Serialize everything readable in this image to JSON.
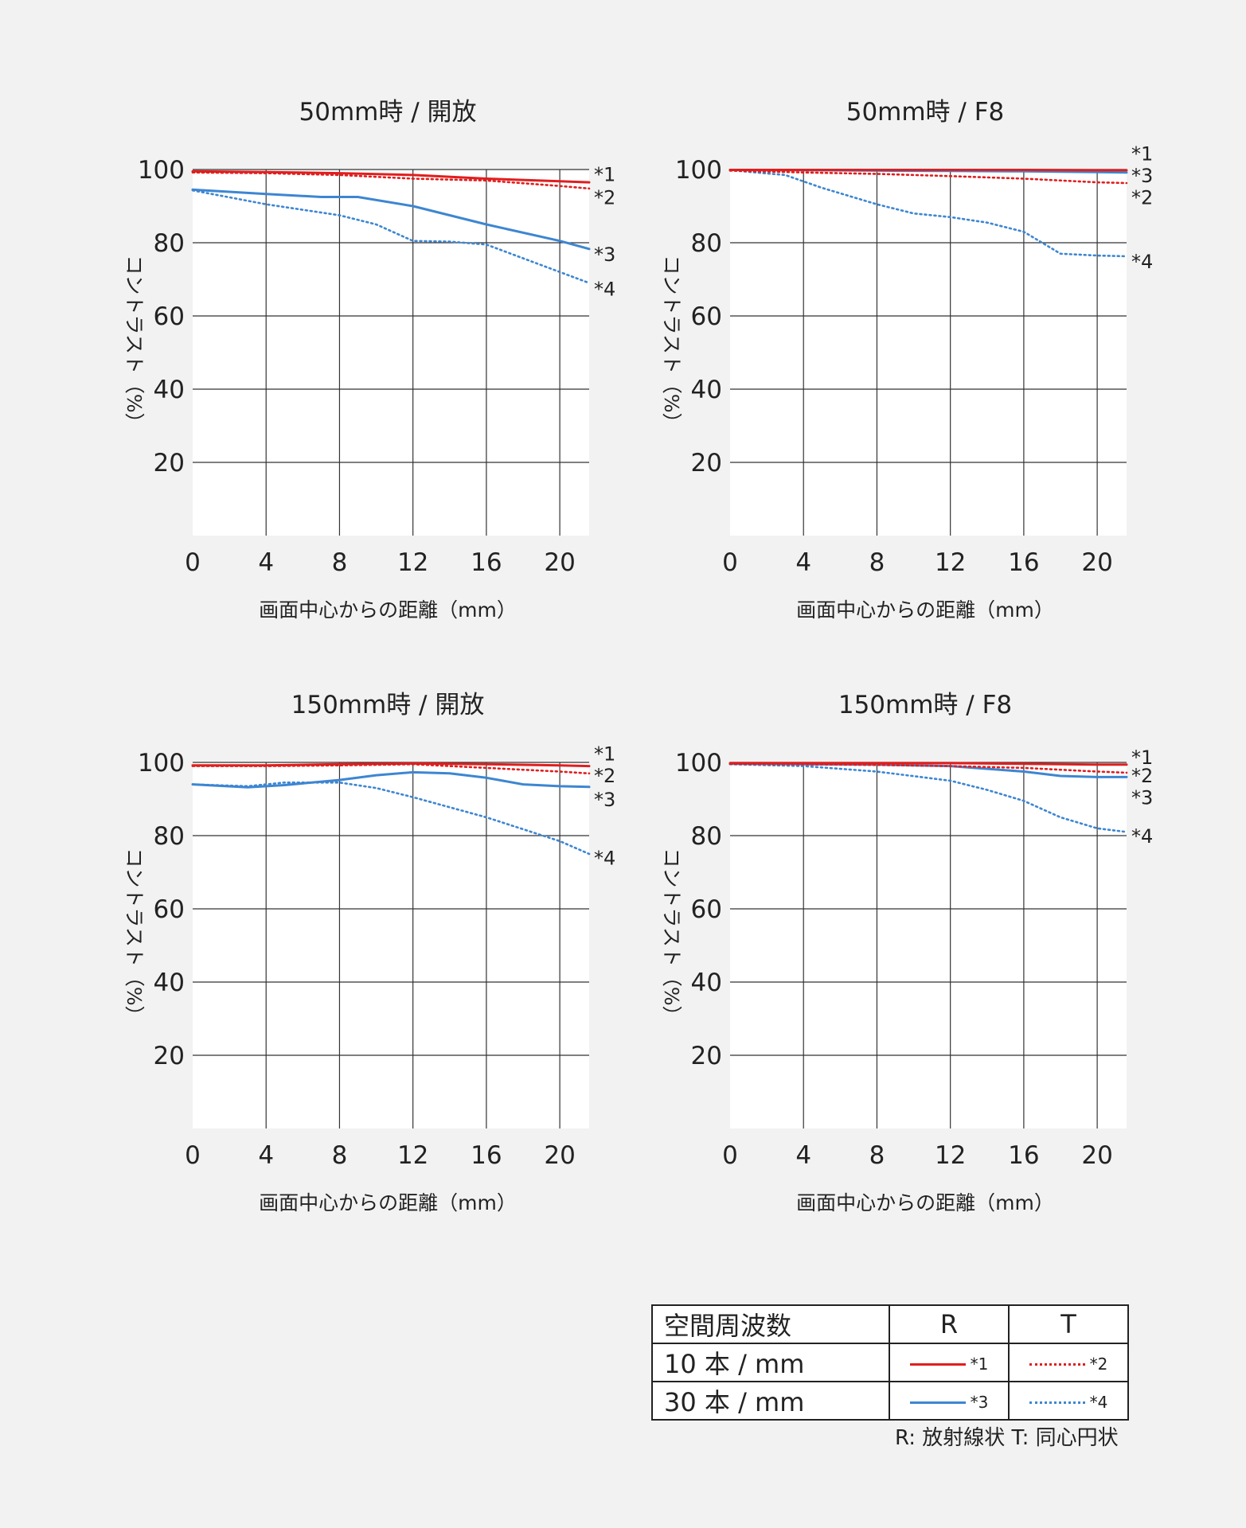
{
  "colors": {
    "red": "#e01e1e",
    "blue": "#3d86d2"
  },
  "x_ticks": [
    0,
    4,
    8,
    12,
    16,
    20
  ],
  "y_ticks": [
    20,
    40,
    60,
    80,
    100
  ],
  "chart_data": [
    {
      "type": "line",
      "title": "50mm時 / 開放",
      "xlabel": "画面中心からの距離（mm）",
      "ylabel": "コントラスト（%）",
      "xlim": [
        0,
        21.6
      ],
      "ylim": [
        0,
        100
      ],
      "series": [
        {
          "name": "*1",
          "color": "#e01e1e",
          "style": "solid",
          "points": [
            [
              0,
              99.5
            ],
            [
              4,
              99.3
            ],
            [
              8,
              99
            ],
            [
              12,
              98.5
            ],
            [
              16,
              97.5
            ],
            [
              20,
              96.8
            ],
            [
              21.6,
              96.5
            ]
          ]
        },
        {
          "name": "*2",
          "color": "#e01e1e",
          "style": "dotted",
          "points": [
            [
              0,
              99.2
            ],
            [
              4,
              99
            ],
            [
              8,
              98.5
            ],
            [
              12,
              97.5
            ],
            [
              16,
              97
            ],
            [
              20,
              95.5
            ],
            [
              21.6,
              94.8
            ]
          ]
        },
        {
          "name": "*3",
          "color": "#3d86d2",
          "style": "solid",
          "points": [
            [
              0,
              94.5
            ],
            [
              4,
              93.3
            ],
            [
              7,
              92.5
            ],
            [
              9,
              92.5
            ],
            [
              12,
              90
            ],
            [
              16,
              85
            ],
            [
              20,
              80.5
            ],
            [
              21.6,
              78.3
            ]
          ]
        },
        {
          "name": "*4",
          "color": "#3d86d2",
          "style": "dotted",
          "points": [
            [
              0,
              94.3
            ],
            [
              4,
              90.5
            ],
            [
              8,
              87.5
            ],
            [
              10,
              85
            ],
            [
              12,
              80.5
            ],
            [
              14,
              80.3
            ],
            [
              16,
              79.5
            ],
            [
              20,
              72
            ],
            [
              21.6,
              69
            ]
          ]
        }
      ],
      "labels": [
        {
          "text": "*1",
          "y": 98.8
        },
        {
          "text": "*2",
          "y": 92.5
        },
        {
          "text": "*3",
          "y": 77
        },
        {
          "text": "*4",
          "y": 67.5
        }
      ]
    },
    {
      "type": "line",
      "title": "50mm時 / F8",
      "xlabel": "画面中心からの距離（mm）",
      "ylabel": "コントラスト（%）",
      "xlim": [
        0,
        21.6
      ],
      "ylim": [
        0,
        100
      ],
      "series": [
        {
          "name": "*1",
          "color": "#e01e1e",
          "style": "solid",
          "points": [
            [
              0,
              99.9
            ],
            [
              4,
              99.9
            ],
            [
              8,
              99.9
            ],
            [
              12,
              99.9
            ],
            [
              16,
              99.9
            ],
            [
              20,
              99.8
            ],
            [
              21.6,
              99.8
            ]
          ]
        },
        {
          "name": "*2",
          "color": "#e01e1e",
          "style": "dotted",
          "points": [
            [
              0,
              99.7
            ],
            [
              4,
              99.2
            ],
            [
              8,
              98.8
            ],
            [
              12,
              98.2
            ],
            [
              16,
              97.5
            ],
            [
              20,
              96.5
            ],
            [
              21.6,
              96.3
            ]
          ]
        },
        {
          "name": "*3",
          "color": "#3d86d2",
          "style": "solid",
          "points": [
            [
              0,
              99.9
            ],
            [
              4,
              99.8
            ],
            [
              8,
              99.7
            ],
            [
              12,
              99.6
            ],
            [
              16,
              99.5
            ],
            [
              20,
              99.3
            ],
            [
              21.6,
              99.2
            ]
          ]
        },
        {
          "name": "*4",
          "color": "#3d86d2",
          "style": "dotted",
          "points": [
            [
              0,
              99.8
            ],
            [
              3,
              98.5
            ],
            [
              5,
              95
            ],
            [
              8,
              90.5
            ],
            [
              10,
              88
            ],
            [
              12,
              87
            ],
            [
              14,
              85.5
            ],
            [
              16,
              83
            ],
            [
              18,
              77
            ],
            [
              20,
              76.5
            ],
            [
              21.6,
              76.3
            ]
          ]
        }
      ],
      "labels": [
        {
          "text": "*1",
          "y": 104.5
        },
        {
          "text": "*3",
          "y": 98.5
        },
        {
          "text": "*2",
          "y": 92.5
        },
        {
          "text": "*4",
          "y": 75
        }
      ]
    },
    {
      "type": "line",
      "title": "150mm時 / 開放",
      "xlabel": "画面中心からの距離（mm）",
      "ylabel": "コントラスト（%）",
      "xlim": [
        0,
        21.6
      ],
      "ylim": [
        0,
        100
      ],
      "series": [
        {
          "name": "*1",
          "color": "#e01e1e",
          "style": "solid",
          "points": [
            [
              0,
              99.2
            ],
            [
              4,
              99.2
            ],
            [
              8,
              99.5
            ],
            [
              12,
              99.7
            ],
            [
              16,
              99.5
            ],
            [
              20,
              99.2
            ],
            [
              21.6,
              99
            ]
          ]
        },
        {
          "name": "*2",
          "color": "#e01e1e",
          "style": "dotted",
          "points": [
            [
              0,
              99
            ],
            [
              4,
              99
            ],
            [
              8,
              99.2
            ],
            [
              12,
              99.5
            ],
            [
              16,
              98.5
            ],
            [
              20,
              97.5
            ],
            [
              21.6,
              97
            ]
          ]
        },
        {
          "name": "*3",
          "color": "#3d86d2",
          "style": "solid",
          "points": [
            [
              0,
              94
            ],
            [
              3,
              93.2
            ],
            [
              5,
              93.8
            ],
            [
              8,
              95.2
            ],
            [
              10,
              96.5
            ],
            [
              12,
              97.3
            ],
            [
              14,
              97
            ],
            [
              16,
              95.8
            ],
            [
              18,
              94
            ],
            [
              20,
              93.5
            ],
            [
              21.6,
              93.3
            ]
          ]
        },
        {
          "name": "*4",
          "color": "#3d86d2",
          "style": "dotted",
          "points": [
            [
              0,
              94
            ],
            [
              3,
              93.5
            ],
            [
              5,
              94.5
            ],
            [
              8,
              94.5
            ],
            [
              10,
              93
            ],
            [
              12,
              90.5
            ],
            [
              16,
              85
            ],
            [
              20,
              78.5
            ],
            [
              21.6,
              75
            ]
          ]
        }
      ],
      "labels": [
        {
          "text": "*1",
          "y": 102.5
        },
        {
          "text": "*2",
          "y": 96.5
        },
        {
          "text": "*3",
          "y": 90
        },
        {
          "text": "*4",
          "y": 74
        }
      ]
    },
    {
      "type": "line",
      "title": "150mm時 / F8",
      "xlabel": "画面中心からの距離（mm）",
      "ylabel": "コントラスト（%）",
      "xlim": [
        0,
        21.6
      ],
      "ylim": [
        0,
        100
      ],
      "series": [
        {
          "name": "*1",
          "color": "#e01e1e",
          "style": "solid",
          "points": [
            [
              0,
              99.8
            ],
            [
              4,
              99.8
            ],
            [
              8,
              99.8
            ],
            [
              12,
              99.8
            ],
            [
              16,
              99.6
            ],
            [
              20,
              99.4
            ],
            [
              21.6,
              99.4
            ]
          ]
        },
        {
          "name": "*2",
          "color": "#e01e1e",
          "style": "dotted",
          "points": [
            [
              0,
              99.6
            ],
            [
              4,
              99.5
            ],
            [
              8,
              99.3
            ],
            [
              12,
              99
            ],
            [
              16,
              98.5
            ],
            [
              20,
              97.5
            ],
            [
              21.6,
              97.2
            ]
          ]
        },
        {
          "name": "*3",
          "color": "#3d86d2",
          "style": "solid",
          "points": [
            [
              0,
              99.6
            ],
            [
              4,
              99.5
            ],
            [
              8,
              99.4
            ],
            [
              12,
              99
            ],
            [
              16,
              97.5
            ],
            [
              18,
              96.3
            ],
            [
              20,
              96
            ],
            [
              21.6,
              96
            ]
          ]
        },
        {
          "name": "*4",
          "color": "#3d86d2",
          "style": "dotted",
          "points": [
            [
              0,
              99.5
            ],
            [
              4,
              99
            ],
            [
              8,
              97.5
            ],
            [
              12,
              95
            ],
            [
              14,
              92.5
            ],
            [
              16,
              89.5
            ],
            [
              18,
              85
            ],
            [
              20,
              82
            ],
            [
              21.6,
              81
            ]
          ]
        }
      ],
      "labels": [
        {
          "text": "*1",
          "y": 101.5
        },
        {
          "text": "*2",
          "y": 96.5
        },
        {
          "text": "*3",
          "y": 90.5
        },
        {
          "text": "*4",
          "y": 80
        }
      ]
    }
  ],
  "legend": {
    "header": {
      "label": "空間周波数",
      "r": "R",
      "t": "T"
    },
    "rows": [
      {
        "label": "10 本 / mm",
        "r_tag": "*1",
        "t_tag": "*2"
      },
      {
        "label": "30 本 / mm",
        "r_tag": "*3",
        "t_tag": "*4"
      }
    ],
    "note": "R: 放射線状  T: 同心円状"
  }
}
